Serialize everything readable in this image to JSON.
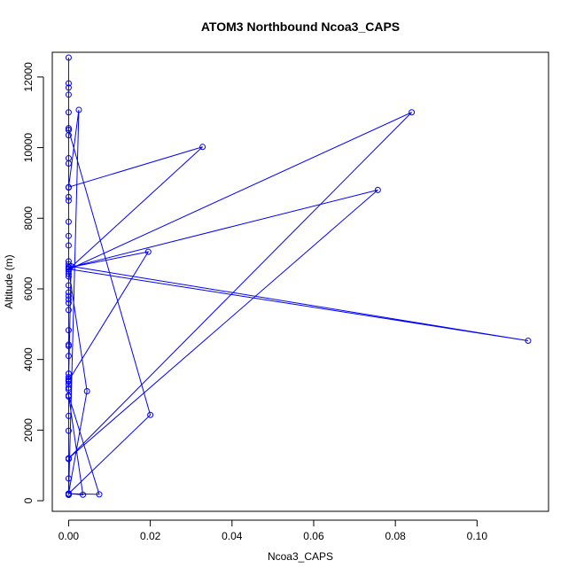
{
  "chart_data": {
    "type": "line",
    "title": "ATOM3 Northbound Ncoa3_CAPS",
    "xlabel": "Ncoa3_CAPS",
    "ylabel": "Altitude (m)",
    "xlim": [
      -0.004,
      0.1175
    ],
    "ylim": [
      -300,
      12700
    ],
    "x_ticks": [
      0.0,
      0.02,
      0.04,
      0.06,
      0.08,
      0.1
    ],
    "x_tick_labels": [
      "0.00",
      "0.02",
      "0.04",
      "0.06",
      "0.08",
      "0.10"
    ],
    "y_ticks": [
      0,
      2000,
      4000,
      6000,
      8000,
      10000,
      12000
    ],
    "y_tick_labels": [
      "0",
      "2000",
      "4000",
      "6000",
      "8000",
      "10000",
      "12000"
    ],
    "color": "#0000ff",
    "series": [
      {
        "x": [
          0.0,
          0.0,
          0.0,
          0.0,
          0.0,
          0.0,
          0.0,
          0.0,
          0.0,
          0.0,
          0.0,
          0.0,
          0.0,
          0.0,
          0.0,
          0.0,
          0.0,
          0.0,
          0.0,
          0.0,
          0.0,
          0.0,
          0.0,
          0.0,
          0.0,
          0.0,
          0.0,
          0.0,
          0.0,
          0.0,
          0.0,
          0.0,
          0.0,
          0.0,
          0.0,
          0.0,
          0.0,
          0.0,
          0.0,
          0.0,
          0.0,
          0.0,
          0.0,
          0.0,
          0.0,
          0.0,
          0.0,
          0.0,
          0.0,
          0.0,
          0.0025,
          0.0,
          0.0328,
          0.0,
          0.084,
          0.0,
          0.0757,
          0.0,
          0.0195,
          0.0,
          0.0006,
          0.1125,
          0.0,
          0.0045,
          0.0,
          0.0035,
          0.0,
          0.0075,
          0.0,
          0.02,
          0.0
        ],
        "y": [
          12550,
          11820,
          11700,
          11500,
          11000,
          10550,
          10500,
          10350,
          9700,
          9550,
          8870,
          8600,
          8500,
          7900,
          7500,
          7230,
          6780,
          6700,
          6620,
          6500,
          6420,
          6350,
          6100,
          5900,
          5800,
          5700,
          5600,
          5400,
          4830,
          4420,
          4380,
          4100,
          3600,
          3500,
          3440,
          3380,
          3300,
          3200,
          3150,
          2950,
          2400,
          1980,
          1200,
          1180,
          630,
          200,
          190,
          180,
          170,
          165,
          11070,
          8880,
          10020,
          6550,
          11000,
          1200,
          8800,
          6600,
          7050,
          3400,
          6640,
          4530,
          6560,
          3100,
          200,
          170,
          2980,
          180,
          200,
          2430,
          10500
        ]
      }
    ]
  }
}
